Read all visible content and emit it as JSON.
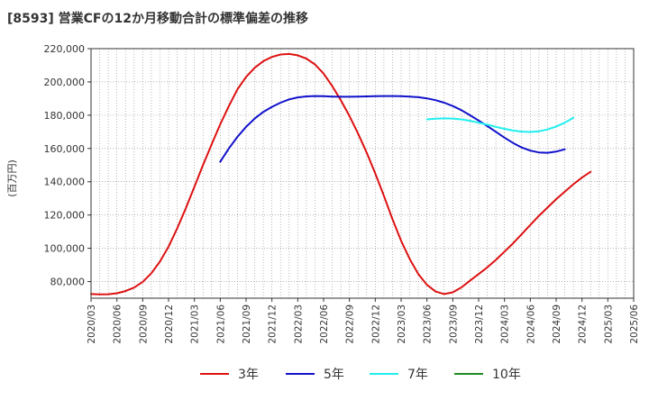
{
  "chart_data": {
    "type": "line",
    "title": "[8593]  営業CFの12か月移動合計の標準偏差の推移",
    "ylabel": "(百万円)",
    "xlabel": "",
    "ylim": [
      70000,
      220000
    ],
    "y_ticks": [
      "80,000",
      "100,000",
      "120,000",
      "140,000",
      "160,000",
      "180,000",
      "200,000",
      "220,000"
    ],
    "y_tick_values": [
      80000,
      100000,
      120000,
      140000,
      160000,
      180000,
      200000,
      220000
    ],
    "x_ticks": [
      "2020/03",
      "2020/06",
      "2020/09",
      "2020/12",
      "2021/03",
      "2021/06",
      "2021/09",
      "2021/12",
      "2022/03",
      "2022/06",
      "2022/09",
      "2022/12",
      "2023/03",
      "2023/06",
      "2023/09",
      "2023/12",
      "2024/03",
      "2024/06",
      "2024/09",
      "2024/12",
      "2025/03",
      "2025/06"
    ],
    "grid": true,
    "legend_position": "bottom",
    "series": [
      {
        "name": "3年",
        "color": "#dd1111",
        "points": [
          [
            "2020/03",
            72500
          ],
          [
            "2020/04",
            72300
          ],
          [
            "2020/05",
            72400
          ],
          [
            "2020/06",
            73000
          ],
          [
            "2020/07",
            74300
          ],
          [
            "2020/08",
            76400
          ],
          [
            "2020/09",
            79800
          ],
          [
            "2020/10",
            85000
          ],
          [
            "2020/11",
            92000
          ],
          [
            "2020/12",
            101000
          ],
          [
            "2021/01",
            112000
          ],
          [
            "2021/02",
            124000
          ],
          [
            "2021/03",
            137000
          ],
          [
            "2021/04",
            150000
          ],
          [
            "2021/05",
            162500
          ],
          [
            "2021/06",
            174500
          ],
          [
            "2021/07",
            185500
          ],
          [
            "2021/08",
            195500
          ],
          [
            "2021/09",
            203000
          ],
          [
            "2021/10",
            208500
          ],
          [
            "2021/11",
            212500
          ],
          [
            "2021/12",
            215000
          ],
          [
            "2022/01",
            216500
          ],
          [
            "2022/02",
            216800
          ],
          [
            "2022/03",
            216000
          ],
          [
            "2022/04",
            214000
          ],
          [
            "2022/05",
            210500
          ],
          [
            "2022/06",
            205000
          ],
          [
            "2022/07",
            197500
          ],
          [
            "2022/08",
            189000
          ],
          [
            "2022/09",
            179500
          ],
          [
            "2022/10",
            169000
          ],
          [
            "2022/11",
            157500
          ],
          [
            "2022/12",
            145000
          ],
          [
            "2023/01",
            131500
          ],
          [
            "2023/02",
            117500
          ],
          [
            "2023/03",
            104500
          ],
          [
            "2023/04",
            93500
          ],
          [
            "2023/05",
            84500
          ],
          [
            "2023/06",
            78000
          ],
          [
            "2023/07",
            74000
          ],
          [
            "2023/08",
            72500
          ],
          [
            "2023/09",
            73500
          ],
          [
            "2023/10",
            76500
          ],
          [
            "2023/11",
            80500
          ],
          [
            "2023/12",
            84500
          ],
          [
            "2024/01",
            88500
          ],
          [
            "2024/02",
            93000
          ],
          [
            "2024/03",
            98000
          ],
          [
            "2024/04",
            103000
          ],
          [
            "2024/05",
            108500
          ],
          [
            "2024/06",
            114000
          ],
          [
            "2024/07",
            119500
          ],
          [
            "2024/08",
            124500
          ],
          [
            "2024/09",
            129500
          ],
          [
            "2024/10",
            134000
          ],
          [
            "2024/11",
            138500
          ],
          [
            "2024/12",
            142500
          ],
          [
            "2025/01",
            146000
          ]
        ]
      },
      {
        "name": "5年",
        "color": "#1111cc",
        "points": [
          [
            "2021/06",
            152000
          ],
          [
            "2021/07",
            160000
          ],
          [
            "2021/08",
            167000
          ],
          [
            "2021/09",
            173000
          ],
          [
            "2021/10",
            178000
          ],
          [
            "2021/11",
            182000
          ],
          [
            "2021/12",
            185000
          ],
          [
            "2022/01",
            187500
          ],
          [
            "2022/02",
            189500
          ],
          [
            "2022/03",
            190700
          ],
          [
            "2022/04",
            191300
          ],
          [
            "2022/05",
            191500
          ],
          [
            "2022/06",
            191400
          ],
          [
            "2022/07",
            191200
          ],
          [
            "2022/08",
            191100
          ],
          [
            "2022/09",
            191100
          ],
          [
            "2022/10",
            191200
          ],
          [
            "2022/11",
            191300
          ],
          [
            "2022/12",
            191400
          ],
          [
            "2023/01",
            191500
          ],
          [
            "2023/02",
            191500
          ],
          [
            "2023/03",
            191400
          ],
          [
            "2023/04",
            191200
          ],
          [
            "2023/05",
            190800
          ],
          [
            "2023/06",
            190100
          ],
          [
            "2023/07",
            189000
          ],
          [
            "2023/08",
            187500
          ],
          [
            "2023/09",
            185500
          ],
          [
            "2023/10",
            183000
          ],
          [
            "2023/11",
            180000
          ],
          [
            "2023/12",
            176800
          ],
          [
            "2024/01",
            173500
          ],
          [
            "2024/02",
            170000
          ],
          [
            "2024/03",
            166500
          ],
          [
            "2024/04",
            163300
          ],
          [
            "2024/05",
            160600
          ],
          [
            "2024/06",
            158700
          ],
          [
            "2024/07",
            157600
          ],
          [
            "2024/08",
            157400
          ],
          [
            "2024/09",
            158100
          ],
          [
            "2024/10",
            159500
          ]
        ]
      },
      {
        "name": "7年",
        "color": "#22eeee",
        "points": [
          [
            "2023/06",
            177500
          ],
          [
            "2023/07",
            177900
          ],
          [
            "2023/08",
            178100
          ],
          [
            "2023/09",
            178000
          ],
          [
            "2023/10",
            177500
          ],
          [
            "2023/11",
            176600
          ],
          [
            "2023/12",
            175500
          ],
          [
            "2024/01",
            174300
          ],
          [
            "2024/02",
            173000
          ],
          [
            "2024/03",
            171800
          ],
          [
            "2024/04",
            170800
          ],
          [
            "2024/05",
            170100
          ],
          [
            "2024/06",
            169900
          ],
          [
            "2024/07",
            170300
          ],
          [
            "2024/08",
            171400
          ],
          [
            "2024/09",
            173200
          ],
          [
            "2024/10",
            175500
          ],
          [
            "2024/11",
            178500
          ]
        ]
      },
      {
        "name": "10年",
        "color": "#228822",
        "points": []
      }
    ]
  }
}
